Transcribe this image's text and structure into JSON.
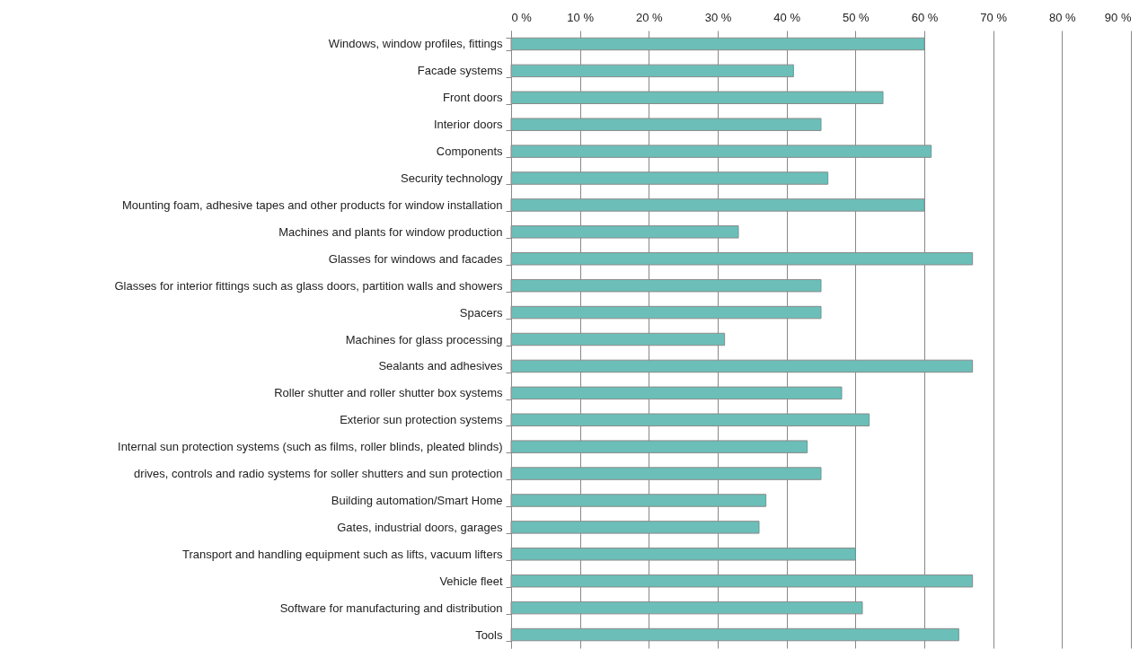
{
  "chart_data": {
    "type": "bar",
    "orientation": "horizontal",
    "categories": [
      "Windows, window profiles, fittings",
      "Facade systems",
      "Front doors",
      "Interior doors",
      "Components",
      "Security technology",
      "Mounting foam, adhesive tapes and other products for window installation",
      "Machines and plants for window production",
      "Glasses for windows and facades",
      "Glasses for interior fittings such as glass doors, partition walls and showers",
      "Spacers",
      "Machines for glass processing",
      "Sealants and adhesives",
      "Roller shutter and roller shutter box systems",
      "Exterior sun protection systems",
      "Internal sun protection systems (such as films, roller blinds, pleated blinds)",
      "drives, controls and radio systems for soller shutters and sun protection",
      "Building automation/Smart Home",
      "Gates, industrial doors, garages",
      "Transport and handling equipment such as lifts, vacuum lifters",
      "Vehicle fleet",
      "Software for manufacturing and distribution",
      "Tools"
    ],
    "values": [
      60,
      41,
      54,
      45,
      61,
      46,
      60,
      33,
      67,
      45,
      45,
      31,
      67,
      48,
      52,
      43,
      45,
      37,
      36,
      50,
      67,
      51,
      65
    ],
    "color": "#6bbfb8",
    "xlim": [
      0,
      90
    ],
    "xticks": [
      {
        "value": 0,
        "label": "0 %"
      },
      {
        "value": 10,
        "label": "10 %"
      },
      {
        "value": 20,
        "label": "20 %"
      },
      {
        "value": 30,
        "label": "30 %"
      },
      {
        "value": 40,
        "label": "40 %"
      },
      {
        "value": 50,
        "label": "50 %"
      },
      {
        "value": 60,
        "label": "60 %"
      },
      {
        "value": 70,
        "label": "70 %"
      },
      {
        "value": 80,
        "label": "80 %"
      },
      {
        "value": 90,
        "label": "90 %"
      }
    ],
    "grid": "x"
  }
}
